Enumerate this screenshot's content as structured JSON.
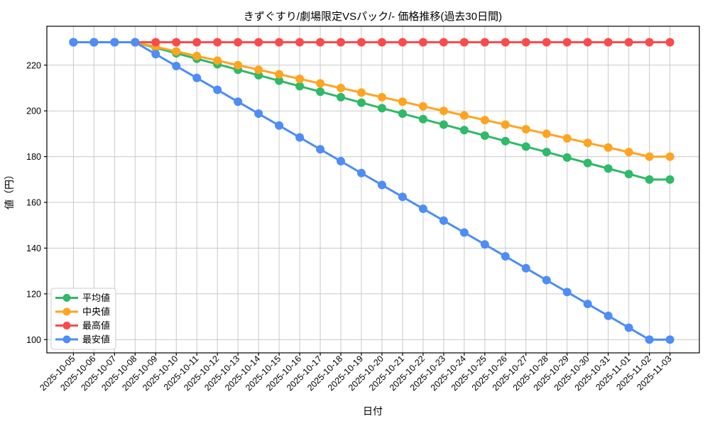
{
  "chart_data": {
    "type": "line",
    "title": "きずぐすり/劇場限定VSパック/- 価格推移(過去30日間)",
    "xlabel": "日付",
    "ylabel": "値（円）",
    "x": [
      "2025-10-05",
      "2025-10-06",
      "2025-10-07",
      "2025-10-08",
      "2025-10-09",
      "2025-10-10",
      "2025-10-11",
      "2025-10-12",
      "2025-10-13",
      "2025-10-14",
      "2025-10-15",
      "2025-10-16",
      "2025-10-17",
      "2025-10-18",
      "2025-10-19",
      "2025-10-20",
      "2025-10-21",
      "2025-10-22",
      "2025-10-23",
      "2025-10-24",
      "2025-10-25",
      "2025-10-26",
      "2025-10-27",
      "2025-10-28",
      "2025-10-29",
      "2025-10-30",
      "2025-10-31",
      "2025-11-01",
      "2025-11-02",
      "2025-11-03"
    ],
    "series": [
      {
        "name": "平均値",
        "color": "#2fb968",
        "values": [
          230,
          230,
          230,
          230,
          227.6,
          225.2,
          222.8,
          220.4,
          218,
          215.6,
          213.2,
          210.8,
          208.4,
          206,
          203.6,
          201.2,
          198.8,
          196.4,
          194,
          191.6,
          189.2,
          186.8,
          184.4,
          182,
          179.6,
          177.2,
          174.8,
          172.4,
          170,
          170
        ]
      },
      {
        "name": "中央値",
        "color": "#ffa420",
        "values": [
          230,
          230,
          230,
          230,
          228,
          226,
          224,
          222,
          220,
          218,
          216,
          214,
          212,
          210,
          208,
          206,
          204,
          202,
          200,
          198,
          196,
          194,
          192,
          190,
          188,
          186,
          184,
          182,
          180,
          180
        ]
      },
      {
        "name": "最高値",
        "color": "#f94b4b",
        "values": [
          230,
          230,
          230,
          230,
          230,
          230,
          230,
          230,
          230,
          230,
          230,
          230,
          230,
          230,
          230,
          230,
          230,
          230,
          230,
          230,
          230,
          230,
          230,
          230,
          230,
          230,
          230,
          230,
          230,
          230
        ]
      },
      {
        "name": "最安値",
        "color": "#4e8df6",
        "values": [
          230,
          230,
          230,
          230,
          224.8,
          219.6,
          214.4,
          209.2,
          204,
          198.8,
          193.6,
          188.4,
          183.2,
          178,
          172.8,
          167.6,
          162.4,
          157.2,
          152,
          146.8,
          141.6,
          136.4,
          131.2,
          126,
          120.8,
          115.6,
          110.4,
          105.2,
          100,
          100
        ]
      }
    ],
    "ylim": [
      94.2,
      237.0
    ],
    "yticks": [
      100,
      120,
      140,
      160,
      180,
      200,
      220
    ],
    "grid": true,
    "legend_position": "lower left",
    "grid_color": "#c9c9c9",
    "axis_color": "#000000"
  }
}
